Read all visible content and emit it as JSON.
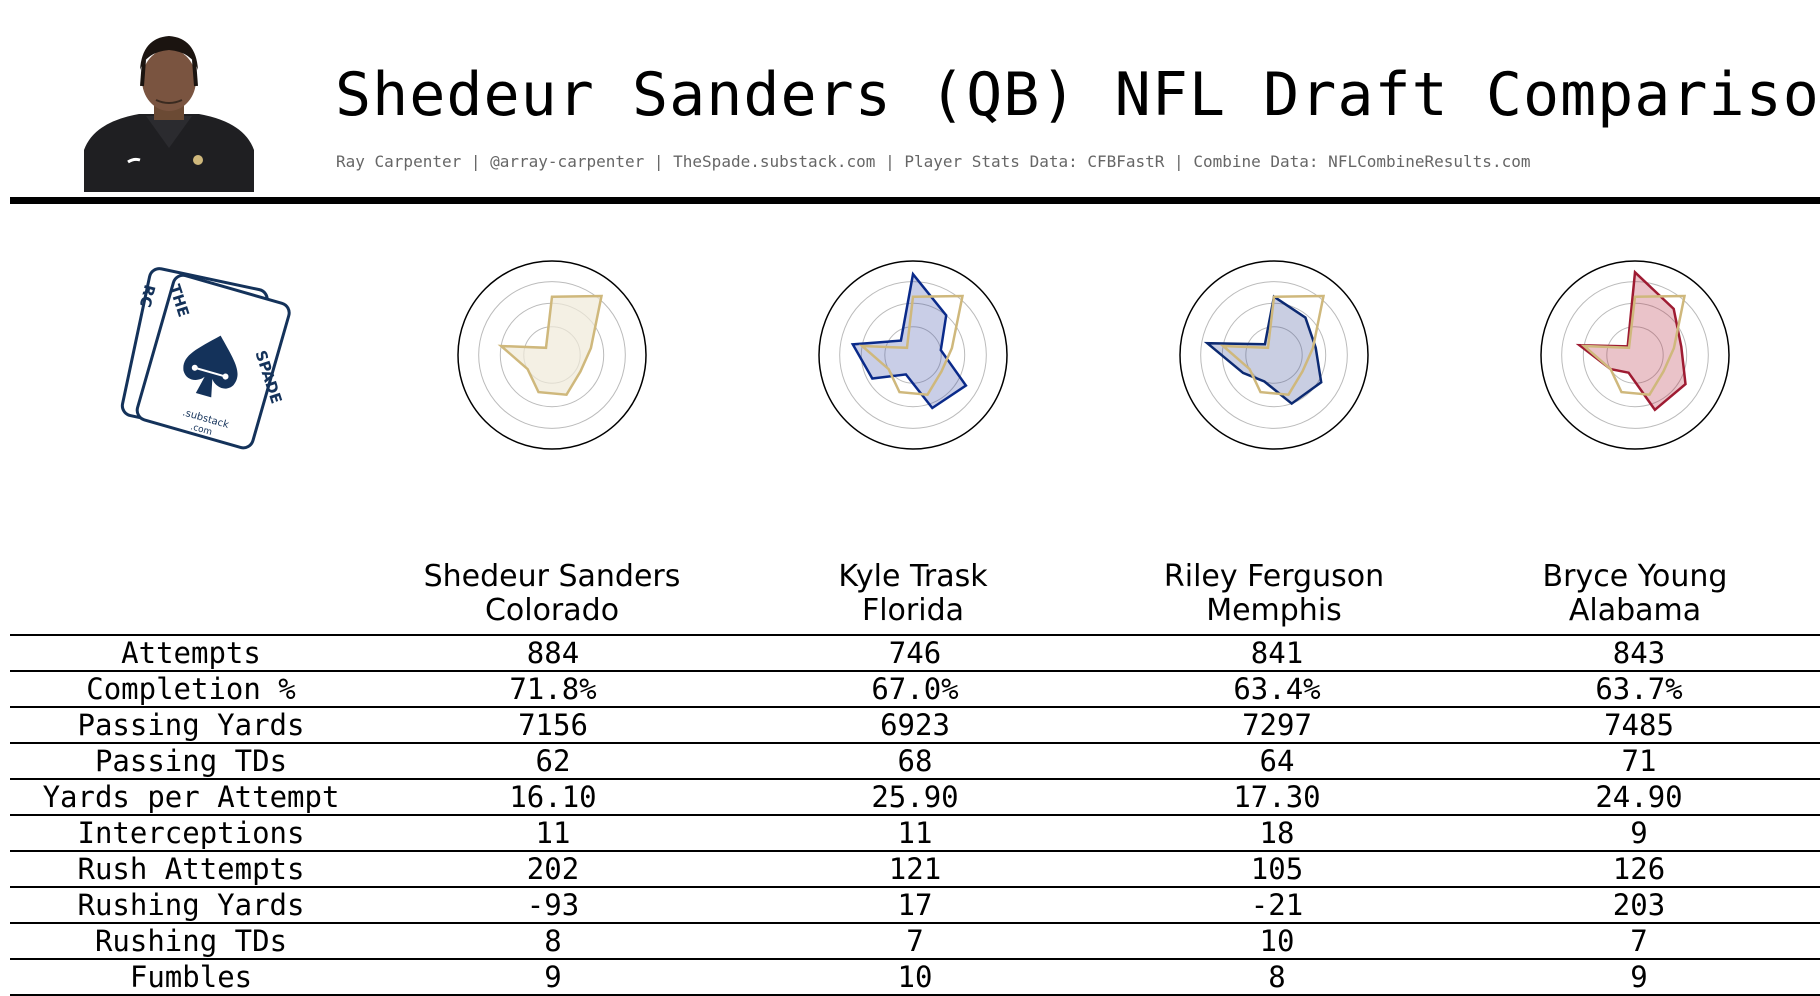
{
  "header": {
    "title": "Shedeur Sanders (QB) NFL Draft Comparison",
    "subtitle": "Ray Carpenter | @array-carpenter | TheSpade.substack.com | Player Stats Data: CFBFastR | Combine Data: NFLCombineResults.com"
  },
  "logo": {
    "letters_left": "RC",
    "letters_the": "THE",
    "letters_spade": "SPADE",
    "substack": ".substack",
    "com": ".com",
    "color": "#14325a"
  },
  "colors": {
    "base_stroke": "#cfb87c",
    "base_fill": "#f0e9d8",
    "grid": "#bbbbbb"
  },
  "players": [
    {
      "name": "Shedeur Sanders",
      "school": "Colorado",
      "color": "#cfb87c",
      "fill": "rgba(207,184,124,0.25)"
    },
    {
      "name": "Kyle Trask",
      "school": "Florida",
      "color": "#0a2a8a",
      "fill": "rgba(60,80,170,0.28)"
    },
    {
      "name": "Riley Ferguson",
      "school": "Memphis",
      "color": "#0c2a72",
      "fill": "rgba(60,80,150,0.28)"
    },
    {
      "name": "Bryce Young",
      "school": "Alabama",
      "color": "#9e1b32",
      "fill": "rgba(180,40,60,0.28)"
    }
  ],
  "chart_data": {
    "type": "table",
    "columns": [
      "Shedeur Sanders",
      "Kyle Trask",
      "Riley Ferguson",
      "Bryce Young"
    ],
    "rows": [
      {
        "label": "Attempts",
        "values": [
          "884",
          "746",
          "841",
          "843"
        ]
      },
      {
        "label": "Completion %",
        "values": [
          "71.8%",
          "67.0%",
          "63.4%",
          "63.7%"
        ]
      },
      {
        "label": "Passing Yards",
        "values": [
          "7156",
          "6923",
          "7297",
          "7485"
        ]
      },
      {
        "label": "Passing TDs",
        "values": [
          "62",
          "68",
          "64",
          "71"
        ]
      },
      {
        "label": "Yards per Attempt",
        "values": [
          "16.10",
          "25.90",
          "17.30",
          "24.90"
        ]
      },
      {
        "label": "Interceptions",
        "values": [
          "11",
          "11",
          "18",
          "9"
        ]
      },
      {
        "label": "Rush Attempts",
        "values": [
          "202",
          "121",
          "105",
          "126"
        ]
      },
      {
        "label": "Rushing Yards",
        "values": [
          "-93",
          "17",
          "-21",
          "203"
        ]
      },
      {
        "label": "Rushing TDs",
        "values": [
          "8",
          "7",
          "10",
          "7"
        ]
      },
      {
        "label": "Fumbles",
        "values": [
          "9",
          "10",
          "8",
          "9"
        ]
      }
    ],
    "radars": [
      {
        "player": "Shedeur Sanders",
        "values": [
          0.62,
          0.82,
          0.42,
          0.35,
          0.45,
          0.42,
          0.3,
          0.55,
          0.1
        ]
      },
      {
        "player": "Kyle Trask",
        "values": [
          0.86,
          0.55,
          0.3,
          0.65,
          0.6,
          0.22,
          0.5,
          0.65,
          0.2
        ]
      },
      {
        "player": "Riley Ferguson",
        "values": [
          0.62,
          0.52,
          0.45,
          0.58,
          0.55,
          0.3,
          0.38,
          0.72,
          0.15
        ]
      },
      {
        "player": "Bryce Young",
        "values": [
          0.88,
          0.64,
          0.5,
          0.62,
          0.62,
          0.2,
          0.3,
          0.6,
          0.12
        ]
      }
    ]
  }
}
